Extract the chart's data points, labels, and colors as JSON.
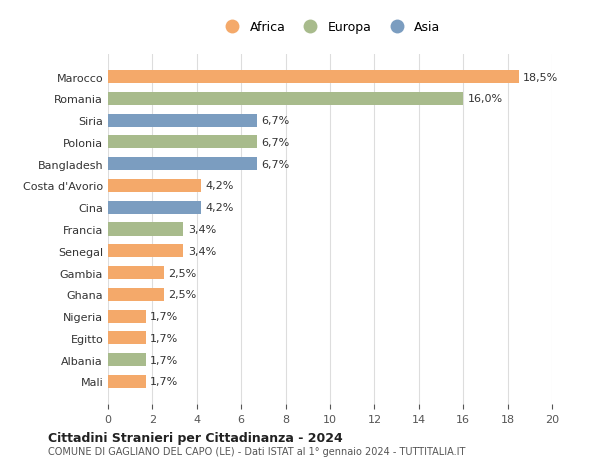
{
  "countries": [
    "Mali",
    "Albania",
    "Egitto",
    "Nigeria",
    "Ghana",
    "Gambia",
    "Senegal",
    "Francia",
    "Cina",
    "Costa d'Avorio",
    "Bangladesh",
    "Polonia",
    "Siria",
    "Romania",
    "Marocco"
  ],
  "values": [
    1.7,
    1.7,
    1.7,
    1.7,
    2.5,
    2.5,
    3.4,
    3.4,
    4.2,
    4.2,
    6.7,
    6.7,
    6.7,
    16.0,
    18.5
  ],
  "continents": [
    "Africa",
    "Europa",
    "Africa",
    "Africa",
    "Africa",
    "Africa",
    "Africa",
    "Europa",
    "Asia",
    "Africa",
    "Asia",
    "Europa",
    "Asia",
    "Europa",
    "Africa"
  ],
  "colors": {
    "Africa": "#F4A96A",
    "Europa": "#A8BB8C",
    "Asia": "#7B9DC0"
  },
  "labels": [
    "1,7%",
    "1,7%",
    "1,7%",
    "1,7%",
    "2,5%",
    "2,5%",
    "3,4%",
    "3,4%",
    "4,2%",
    "4,2%",
    "6,7%",
    "6,7%",
    "6,7%",
    "16,0%",
    "18,5%"
  ],
  "xlim": [
    0,
    20
  ],
  "xticks": [
    0,
    2,
    4,
    6,
    8,
    10,
    12,
    14,
    16,
    18,
    20
  ],
  "title1": "Cittadini Stranieri per Cittadinanza - 2024",
  "title2": "COMUNE DI GAGLIANO DEL CAPO (LE) - Dati ISTAT al 1° gennaio 2024 - TUTTITALIA.IT",
  "legend_order": [
    "Africa",
    "Europa",
    "Asia"
  ],
  "bg_color": "#ffffff",
  "grid_color": "#dddddd"
}
